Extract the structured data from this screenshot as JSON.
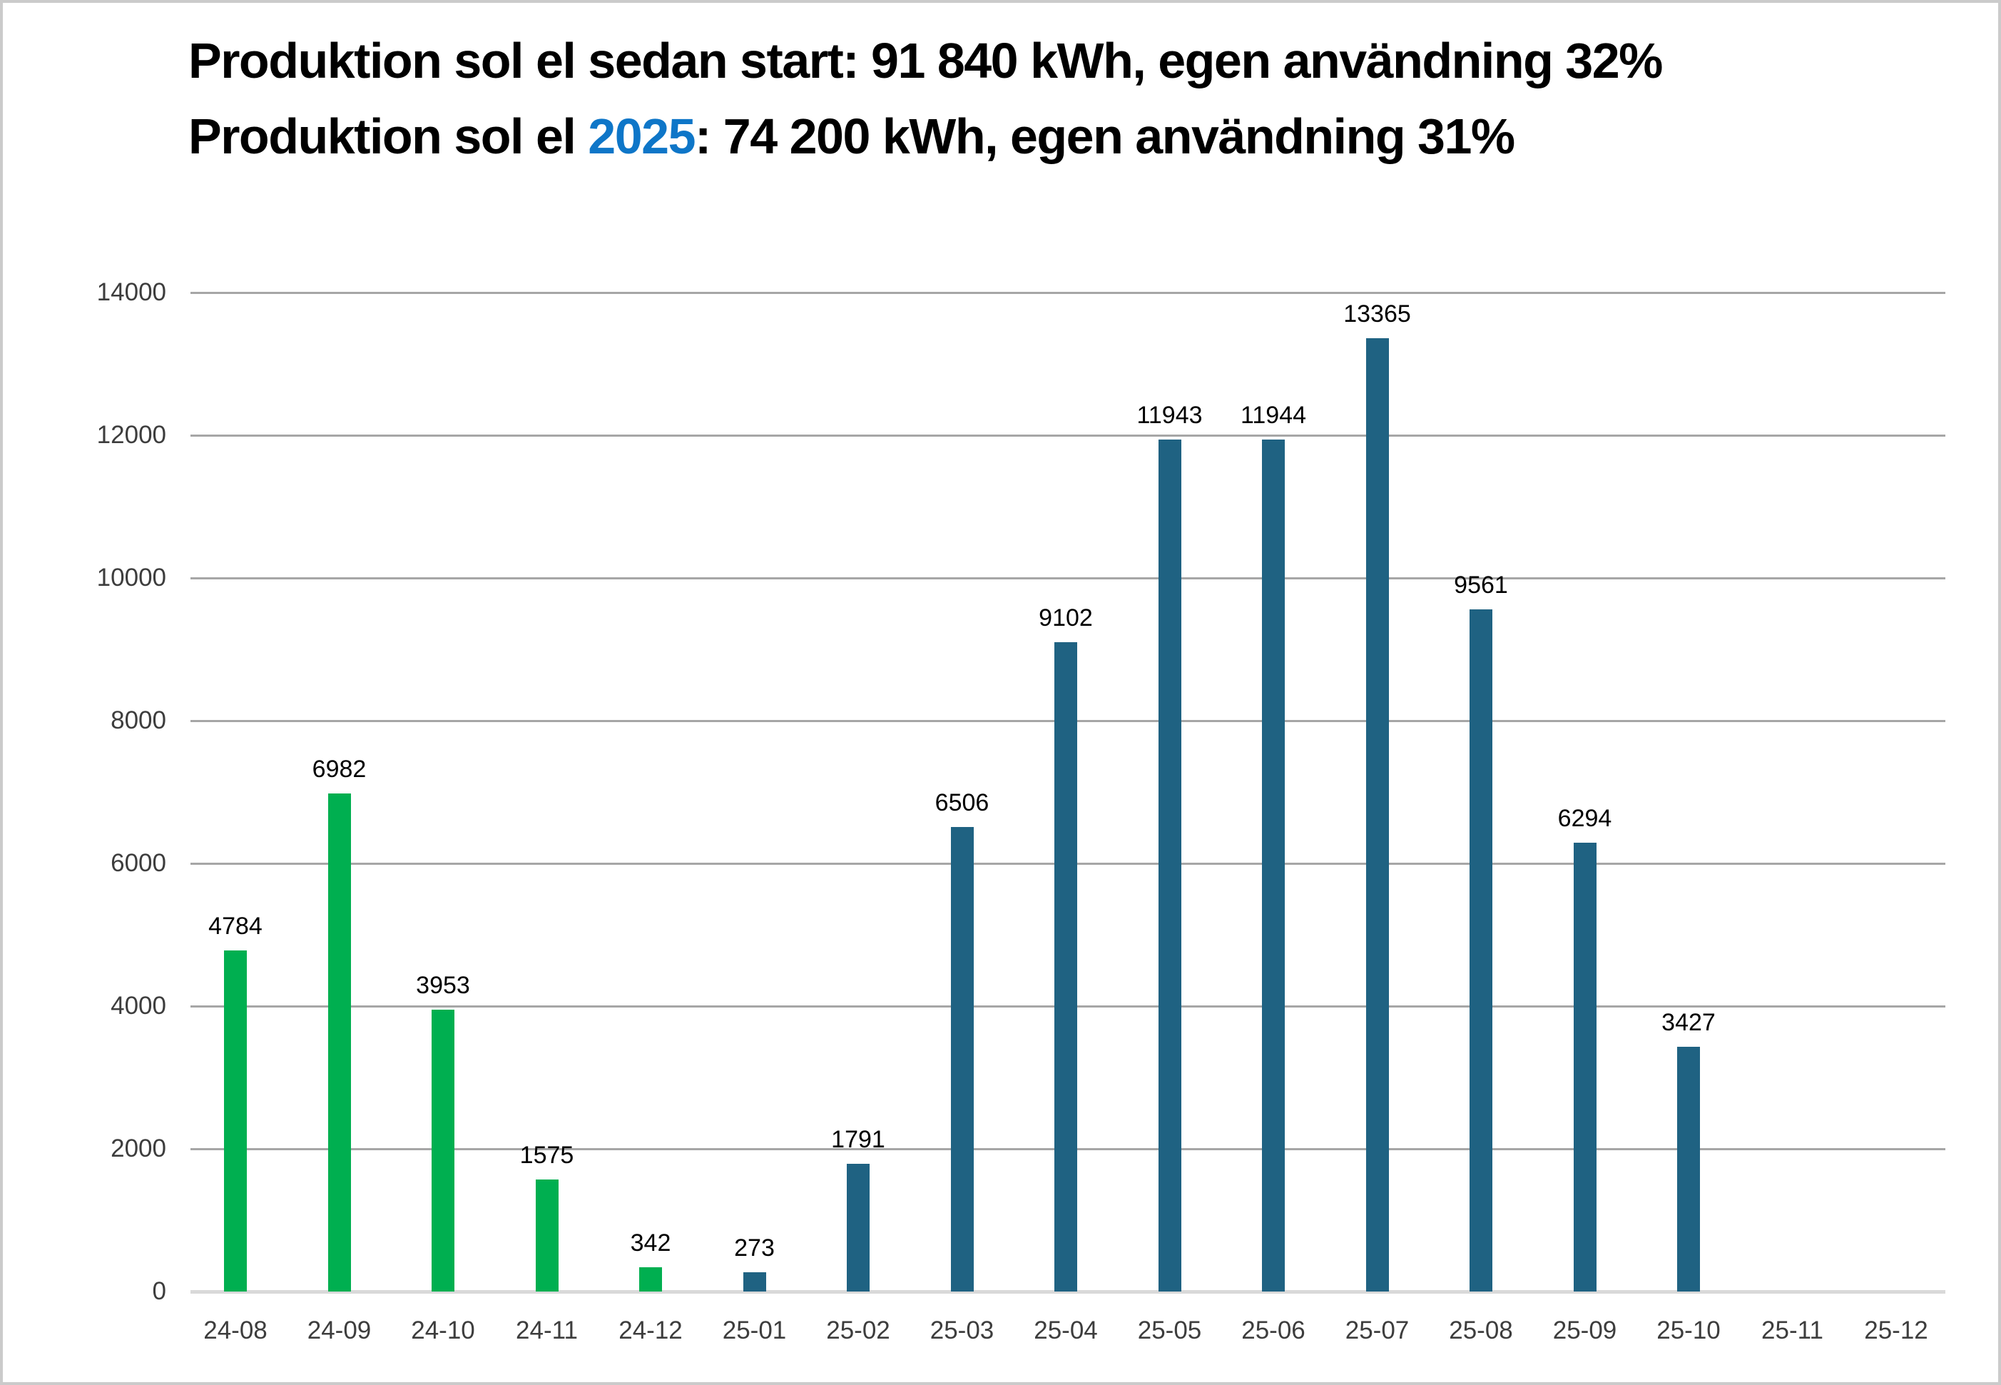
{
  "title": {
    "line1": "Produktion sol el sedan start: 91 840 kWh, egen användning 32%",
    "line2_prefix": "Produktion sol el ",
    "line2_highlight": "2025",
    "line2_suffix": ": 74 200 kWh, egen användning 31%"
  },
  "colors": {
    "green": "#00AF50",
    "teal": "#1F6282",
    "highlight_blue": "#0E76C8",
    "gridline": "#A6A6A6",
    "axis_line": "#D9D9D9",
    "tick_label": "#3D3D3D",
    "data_label": "#000000"
  },
  "chart_data": {
    "type": "bar",
    "title": "Produktion sol el sedan start: 91 840 kWh, egen användning 32% / Produktion sol el 2025: 74 200 kWh, egen användning 31%",
    "xlabel": "",
    "ylabel": "",
    "categories": [
      "24-08",
      "24-09",
      "24-10",
      "24-11",
      "24-12",
      "25-01",
      "25-02",
      "25-03",
      "25-04",
      "25-05",
      "25-06",
      "25-07",
      "25-08",
      "25-09",
      "25-10",
      "25-11",
      "25-12"
    ],
    "values": [
      4784,
      6982,
      3953,
      1575,
      342,
      273,
      1791,
      6506,
      9102,
      11943,
      11944,
      13365,
      9561,
      6294,
      3427,
      null,
      null
    ],
    "bar_color_keys": [
      "green",
      "green",
      "green",
      "green",
      "green",
      "teal",
      "teal",
      "teal",
      "teal",
      "teal",
      "teal",
      "teal",
      "teal",
      "teal",
      "teal",
      "teal",
      "teal"
    ],
    "data_labels": true,
    "ylim": [
      0,
      14000
    ],
    "yticks": [
      0,
      2000,
      4000,
      6000,
      8000,
      10000,
      12000,
      14000
    ],
    "grid": true,
    "legend": "none"
  }
}
